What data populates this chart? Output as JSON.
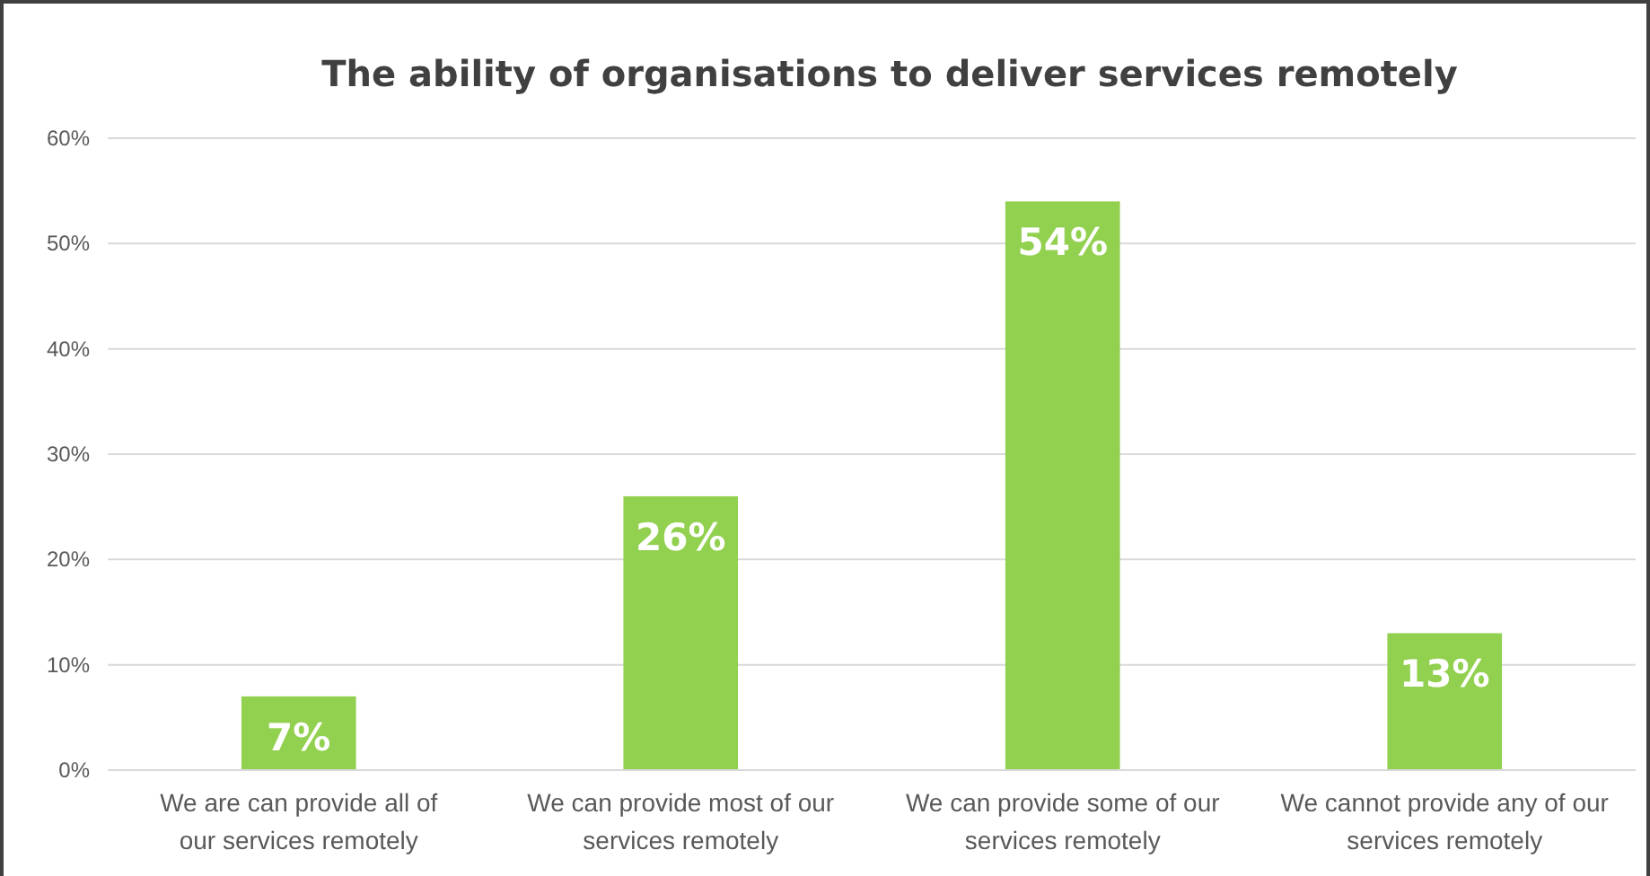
{
  "chart_data": {
    "type": "bar",
    "title": "The ability of organisations to deliver services remotely",
    "categories": [
      "We are can provide all of our services remotely",
      "We can provide most of our services remotely",
      "We can provide some of our services remotely",
      "We cannot provide any of our services remotely"
    ],
    "values": [
      7,
      26,
      54,
      13
    ],
    "color": "#92d050",
    "value_labels": [
      "7%",
      "26%",
      "54%",
      "13%"
    ],
    "ylim": [
      0,
      60
    ],
    "yticks": [
      {
        "value": 0,
        "label": "0%"
      },
      {
        "value": 10,
        "label": "10%"
      },
      {
        "value": 20,
        "label": "20%"
      },
      {
        "value": 30,
        "label": "30%"
      },
      {
        "value": 40,
        "label": "40%"
      },
      {
        "value": 50,
        "label": "50%"
      },
      {
        "value": 60,
        "label": "60%"
      }
    ],
    "grid": "y"
  }
}
